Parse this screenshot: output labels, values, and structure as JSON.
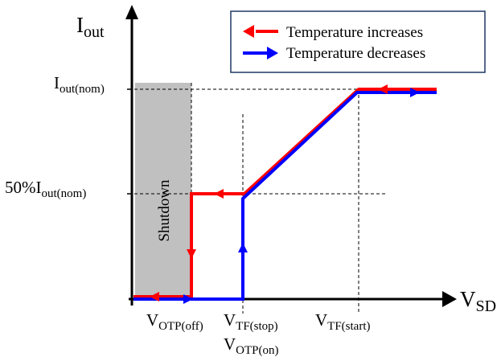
{
  "axes": {
    "y_label": "I",
    "y_label_sub": "out",
    "x_label": "V",
    "x_label_sub": "SD"
  },
  "legend": {
    "items": [
      {
        "label": "Temperature increases",
        "color": "#ff0000"
      },
      {
        "label": "Temperature decreases",
        "color": "#0000ff"
      }
    ]
  },
  "y_ticks": {
    "nominal": {
      "main": "I",
      "sub": "out(nom)"
    },
    "half": {
      "prefix": "50%",
      "main": "I",
      "sub": "out(nom)"
    }
  },
  "x_ticks": {
    "otp_off": {
      "main": "V",
      "sub": "OTP(off)"
    },
    "tf_stop": {
      "main": "V",
      "sub": "TF(stop)"
    },
    "otp_on": {
      "main": "V",
      "sub": "OTP(on)"
    },
    "tf_start": {
      "main": "V",
      "sub": "TF(start)"
    }
  },
  "shutdown_label": "Shutdown",
  "colors": {
    "increase": "#ff0000",
    "decrease": "#0000ff",
    "shutdown_fill": "#c0c0c0",
    "axis": "#000000"
  }
}
